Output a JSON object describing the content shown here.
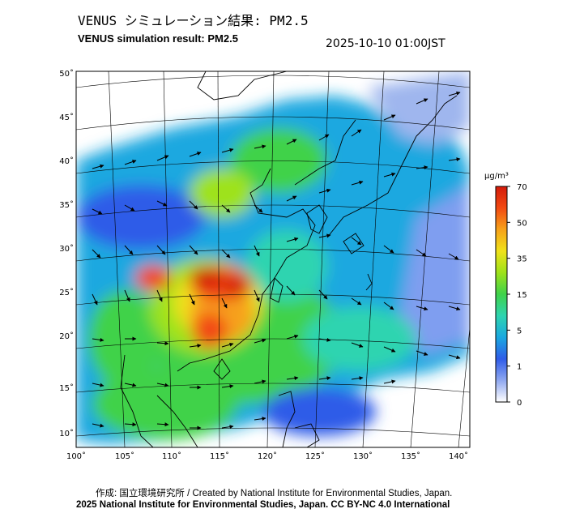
{
  "header": {
    "title_jp": "VENUS シミュレーション結果: PM2.5",
    "title_en": "VENUS simulation result: PM2.5",
    "timestamp": "2025-10-10 01:00JST"
  },
  "footer": {
    "credit_line": "作成: 国立環境研究所 / Created by National Institute for Environmental Studies, Japan.",
    "copyright_line": "2025 National Institute for Environmental Studies, Japan. CC BY-NC 4.0 International"
  },
  "map": {
    "lat_labels": [
      "50˚",
      "45˚",
      "40˚",
      "35˚",
      "30˚",
      "25˚",
      "20˚",
      "15˚",
      "10˚"
    ],
    "lon_labels": [
      "100˚",
      "105˚",
      "110˚",
      "115˚",
      "120˚",
      "125˚",
      "130˚",
      "135˚",
      "140˚"
    ]
  },
  "colorbar": {
    "unit": "μg/m³",
    "tick_labels": [
      "70",
      "50",
      "35",
      "15",
      "5",
      "1",
      "0"
    ],
    "colors": [
      "#ffffff",
      "#8fa8f0",
      "#2f5ce8",
      "#1aa8e0",
      "#2ed4b0",
      "#3fd24a",
      "#9ee21a",
      "#f0e21a",
      "#f7a21a",
      "#f24a12",
      "#d41a0a"
    ]
  }
}
